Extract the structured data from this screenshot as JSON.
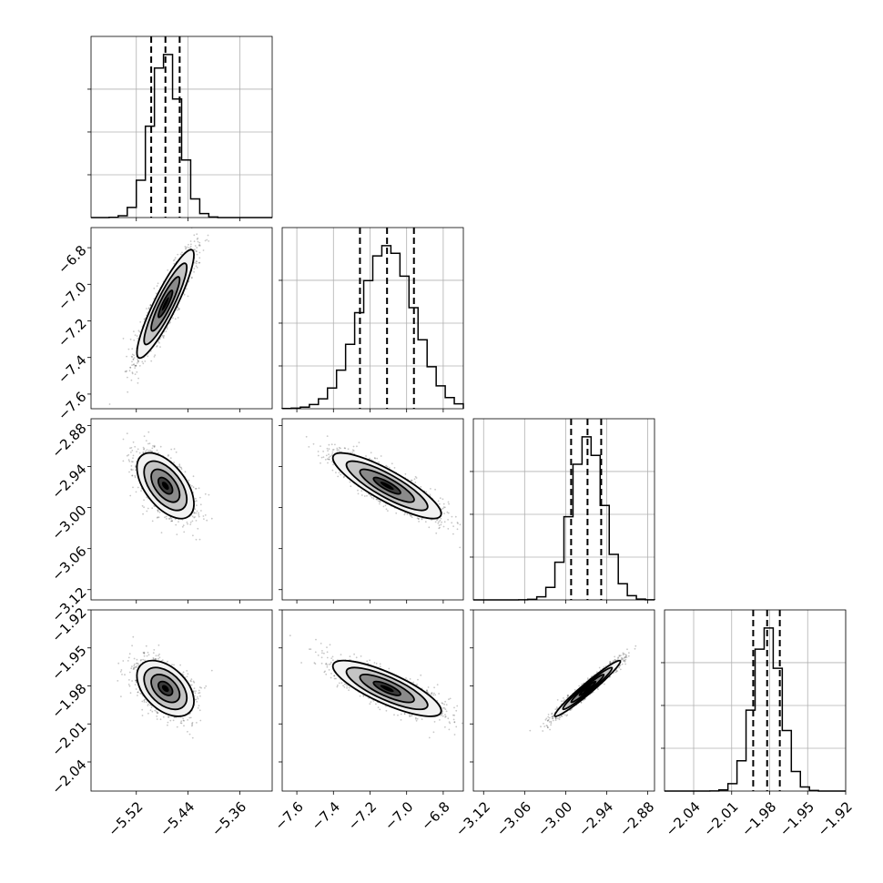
{
  "chart_data": {
    "type": "corner",
    "parameters": [
      {
        "mean": -5.475,
        "sd": 0.022,
        "q16": -5.497,
        "q50": -5.475,
        "q84": -5.453,
        "range": [
          -5.59,
          -5.31
        ],
        "ticks": [
          -5.52,
          -5.44,
          -5.36
        ],
        "tick_labels": [
          "−5.52",
          "−5.44",
          "−5.36"
        ]
      },
      {
        "mean": -7.107,
        "sd": 0.148,
        "q16": -7.255,
        "q50": -7.107,
        "q84": -6.96,
        "range": [
          -7.68,
          -6.69
        ],
        "ticks": [
          -7.6,
          -7.4,
          -7.2,
          -7.0,
          -6.8
        ],
        "tick_labels": [
          "−7.6",
          "−7.4",
          "−7.2",
          "−7.0",
          "−6.8"
        ]
      },
      {
        "mean": -2.968,
        "sd": 0.024,
        "q16": -2.992,
        "q50": -2.968,
        "q84": -2.948,
        "range": [
          -3.135,
          -2.87
        ],
        "ticks": [
          -3.12,
          -3.06,
          -3.0,
          -2.94,
          -2.88
        ],
        "tick_labels": [
          "−3.12",
          "−3.06",
          "−3.00",
          "−2.94",
          "−2.88"
        ]
      },
      {
        "mean": -1.982,
        "sd": 0.011,
        "q16": -1.993,
        "q50": -1.982,
        "q84": -1.972,
        "range": [
          -2.063,
          -1.92
        ],
        "ticks": [
          -2.04,
          -2.01,
          -1.98,
          -1.95,
          -1.92
        ],
        "tick_labels": [
          "−2.04",
          "−2.01",
          "−1.98",
          "−1.95",
          "−1.92"
        ]
      }
    ],
    "correlations": [
      [
        1.0,
        0.9,
        -0.55,
        -0.45
      ],
      [
        0.9,
        1.0,
        -0.85,
        -0.8
      ],
      [
        -0.55,
        -0.85,
        1.0,
        0.97
      ],
      [
        -0.45,
        -0.8,
        0.97,
        1.0
      ]
    ],
    "histogram_bins": 20,
    "quantiles": [
      0.16,
      0.5,
      0.84
    ],
    "contour_levels_sigma": [
      0.5,
      1.0,
      1.5,
      2.0
    ],
    "grid": true
  }
}
